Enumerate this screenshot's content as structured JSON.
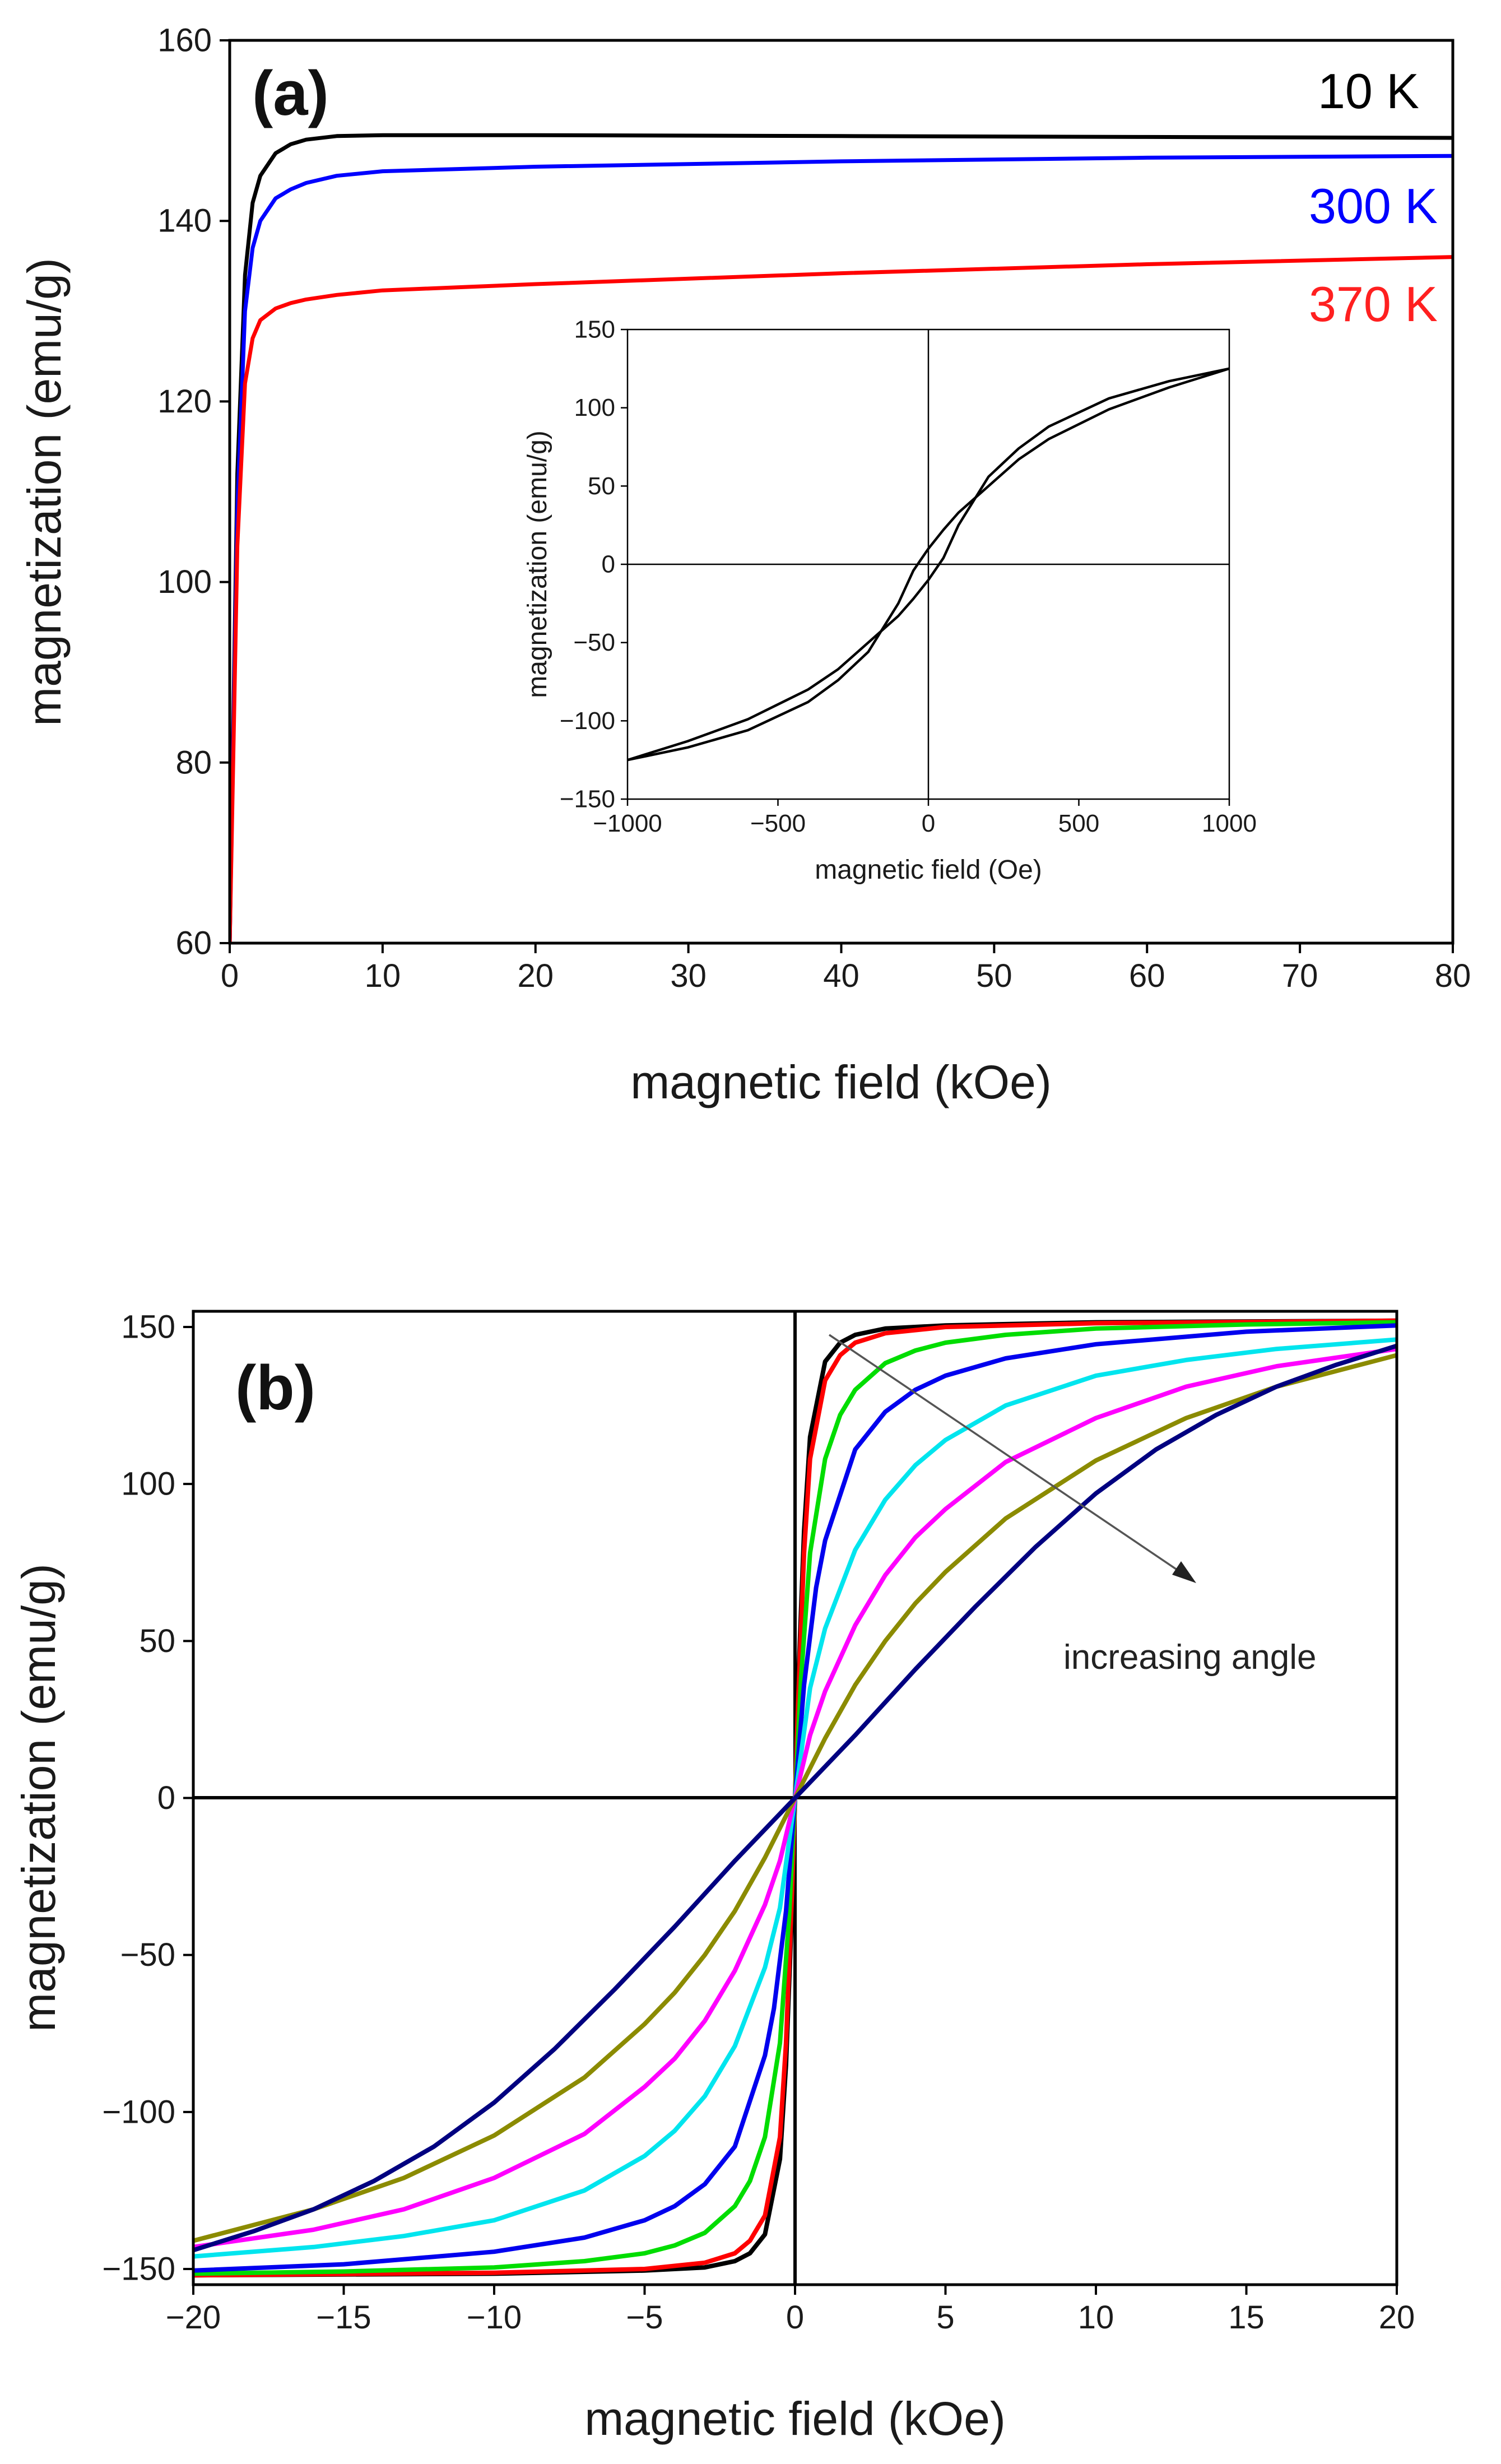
{
  "chart_data": [
    {
      "panel": "a",
      "type": "line",
      "panel_label": "(a)",
      "xlabel": "magnetic field (kOe)",
      "ylabel": "magnetization (emu/g)",
      "xlim": [
        0,
        80
      ],
      "ylim": [
        60,
        160
      ],
      "xticks": [
        0,
        10,
        20,
        30,
        40,
        50,
        60,
        70,
        80
      ],
      "yticks": [
        60,
        80,
        100,
        120,
        140,
        160
      ],
      "grid": false,
      "series": [
        {
          "name": "10 K",
          "color": "#000000",
          "x": [
            0,
            0.5,
            1,
            1.5,
            2,
            3,
            4,
            5,
            7,
            10,
            20,
            40,
            60,
            80
          ],
          "values": [
            60,
            112,
            134,
            142,
            145,
            147.5,
            148.5,
            149,
            149.4,
            149.5,
            149.5,
            149.4,
            149.3,
            149.2
          ]
        },
        {
          "name": "300 K",
          "color": "#0000ff",
          "x": [
            0,
            0.5,
            1,
            1.5,
            2,
            3,
            4,
            5,
            7,
            10,
            20,
            40,
            60,
            80
          ],
          "values": [
            60,
            108,
            130,
            137,
            140,
            142.5,
            143.5,
            144.2,
            145,
            145.5,
            146,
            146.6,
            147,
            147.2
          ]
        },
        {
          "name": "370 K",
          "color": "#ff0000",
          "x": [
            0,
            0.5,
            1,
            1.5,
            2,
            3,
            4,
            5,
            7,
            10,
            20,
            40,
            60,
            80
          ],
          "values": [
            60,
            104,
            122,
            127,
            129,
            130.3,
            130.9,
            131.3,
            131.8,
            132.3,
            133,
            134.2,
            135.2,
            136
          ]
        }
      ],
      "inset": {
        "type": "line",
        "xlabel": "magnetic field (Oe)",
        "ylabel": "magnetization (emu/g)",
        "xlim": [
          -1000,
          1000
        ],
        "ylim": [
          -150,
          150
        ],
        "xticks": [
          -1000,
          -500,
          0,
          500,
          1000
        ],
        "xtick_labels": [
          "−1000",
          "−500",
          "0",
          "500",
          "1000"
        ],
        "yticks": [
          -150,
          -100,
          -50,
          0,
          50,
          100,
          150
        ],
        "ytick_labels": [
          "−150",
          "−100",
          "−50",
          "0",
          "50",
          "100",
          "150"
        ],
        "series": [
          {
            "name": "ascending branch",
            "color": "#000000",
            "x": [
              -1000,
              -800,
              -600,
              -400,
              -300,
              -200,
              -100,
              -50,
              0,
              50,
              100,
              200,
              300,
              400,
              600,
              800,
              1000
            ],
            "values": [
              -125,
              -113,
              -99,
              -80,
              -67,
              -50,
              -33,
              -22,
              -10,
              4,
              25,
              56,
              74,
              88,
              106,
              117,
              125
            ]
          },
          {
            "name": "descending branch",
            "color": "#000000",
            "x": [
              -1000,
              -800,
              -600,
              -400,
              -300,
              -200,
              -100,
              -50,
              0,
              50,
              100,
              200,
              300,
              400,
              600,
              800,
              1000
            ],
            "values": [
              -125,
              -117,
              -106,
              -88,
              -74,
              -56,
              -25,
              -4,
              10,
              22,
              33,
              50,
              67,
              80,
              99,
              113,
              125
            ]
          }
        ]
      }
    },
    {
      "panel": "b",
      "type": "line",
      "panel_label": "(b)",
      "xlabel": "magnetic field (kOe)",
      "ylabel": "magnetization (emu/g)",
      "xlim": [
        -20,
        20
      ],
      "ylim": [
        -155,
        155
      ],
      "xticks": [
        -20,
        -15,
        -10,
        -5,
        0,
        5,
        10,
        15,
        20
      ],
      "xtick_labels": [
        "−20",
        "−15",
        "−10",
        "−5",
        "0",
        "5",
        "10",
        "15",
        "20"
      ],
      "yticks": [
        -150,
        -100,
        -50,
        0,
        50,
        100,
        150
      ],
      "ytick_labels": [
        "−150",
        "−100",
        "−50",
        "0",
        "50",
        "100",
        "150"
      ],
      "grid": false,
      "annotation": "increasing angle",
      "series": [
        {
          "name": "black",
          "color": "#000000",
          "x": [
            0,
            0.1,
            0.3,
            0.5,
            1,
            1.5,
            2,
            3,
            5,
            10,
            20
          ],
          "values": [
            0,
            35,
            85,
            115,
            139,
            145,
            147.5,
            149.5,
            150.5,
            151.5,
            152
          ]
        },
        {
          "name": "red",
          "color": "#ff0000",
          "x": [
            0,
            0.1,
            0.3,
            0.5,
            1,
            1.5,
            2,
            3,
            5,
            10,
            20
          ],
          "values": [
            0,
            30,
            78,
            108,
            133,
            141,
            145,
            148,
            150,
            151.2,
            152
          ]
        },
        {
          "name": "green",
          "color": "#00dd00",
          "x": [
            0,
            0.2,
            0.5,
            1,
            1.5,
            2,
            3,
            4,
            5,
            7,
            10,
            15,
            20
          ],
          "values": [
            0,
            38,
            78,
            108,
            122,
            130,
            138.5,
            142.5,
            145,
            147.5,
            149.5,
            150.8,
            151.5
          ]
        },
        {
          "name": "blue",
          "color": "#0000ee",
          "x": [
            0,
            0.3,
            0.7,
            1,
            2,
            3,
            4,
            5,
            7,
            10,
            15,
            20
          ],
          "values": [
            0,
            36,
            67,
            82,
            111,
            123,
            130,
            134.5,
            140,
            144.5,
            148.5,
            150.5
          ]
        },
        {
          "name": "cyan",
          "color": "#00e5ee",
          "x": [
            0,
            0.5,
            1,
            2,
            3,
            4,
            5,
            7,
            10,
            13,
            16,
            20
          ],
          "values": [
            0,
            35,
            54,
            79,
            95,
            106,
            114,
            125,
            134.5,
            139.5,
            143,
            146
          ]
        },
        {
          "name": "magenta",
          "color": "#ff00ff",
          "x": [
            0,
            0.5,
            1,
            2,
            3,
            4,
            5,
            7,
            10,
            13,
            16,
            20
          ],
          "values": [
            0,
            20,
            34,
            55,
            71,
            83,
            92,
            107,
            121,
            131,
            137.5,
            143
          ]
        },
        {
          "name": "olive",
          "color": "#8b8b00",
          "x": [
            0,
            1,
            2,
            3,
            4,
            5,
            7,
            10,
            13,
            16,
            20
          ],
          "values": [
            0,
            19,
            36,
            50,
            62,
            72,
            89,
            107.5,
            121,
            131,
            141
          ]
        },
        {
          "name": "navy",
          "color": "#000080",
          "x": [
            0,
            2,
            4,
            6,
            8,
            10,
            12,
            14,
            16,
            18,
            20
          ],
          "values": [
            0,
            20,
            41,
            61,
            80,
            97,
            111,
            122,
            131,
            138,
            144
          ]
        }
      ]
    }
  ]
}
